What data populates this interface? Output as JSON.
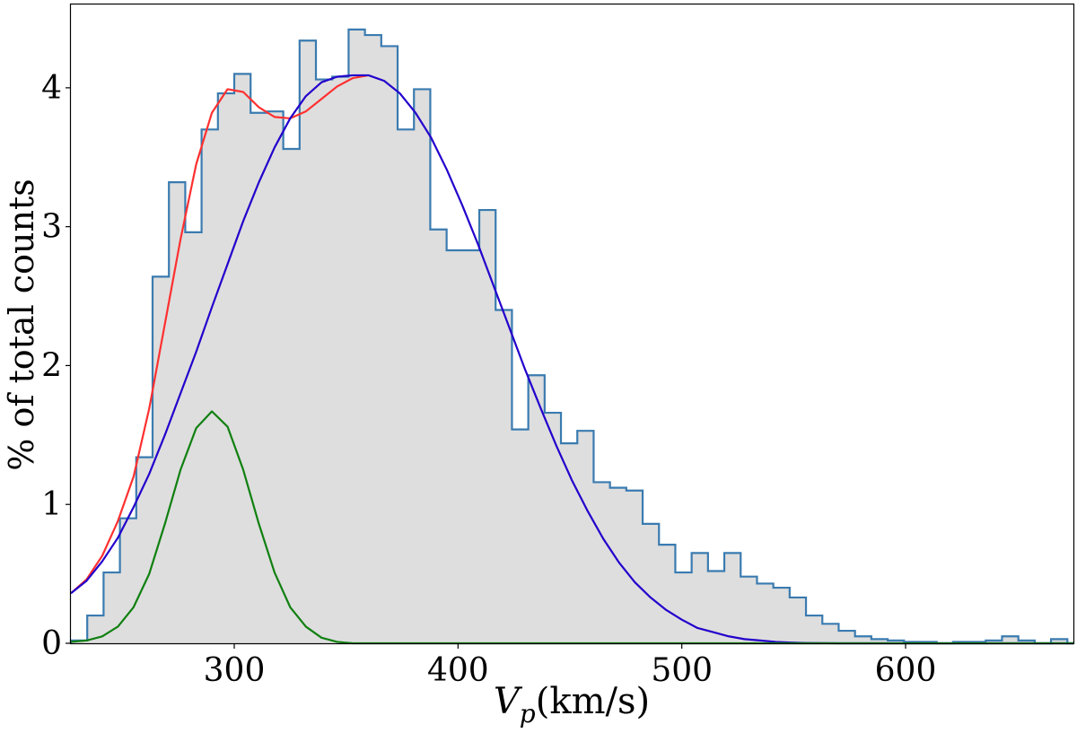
{
  "chart_data": {
    "type": "histogram",
    "xlabel_main": "V",
    "xlabel_sub": "p",
    "xlabel_unit": "(km/s)",
    "ylabel": "% of total counts",
    "xlim": [
      227,
      675
    ],
    "ylim": [
      0,
      4.6
    ],
    "xticks": [
      300,
      400,
      500,
      600
    ],
    "yticks": [
      0,
      1,
      2,
      3,
      4
    ],
    "histogram": {
      "bin_start": 227,
      "bin_width": 7.3,
      "values": [
        0.02,
        0.2,
        0.51,
        0.9,
        1.34,
        2.64,
        3.32,
        2.96,
        3.7,
        3.96,
        4.1,
        3.82,
        3.83,
        3.56,
        4.34,
        4.06,
        4.08,
        4.42,
        4.38,
        4.3,
        3.7,
        3.99,
        2.98,
        2.83,
        2.83,
        3.12,
        2.4,
        1.54,
        1.93,
        1.66,
        1.44,
        1.53,
        1.16,
        1.12,
        1.1,
        0.86,
        0.71,
        0.51,
        0.65,
        0.52,
        0.65,
        0.48,
        0.43,
        0.4,
        0.33,
        0.2,
        0.14,
        0.09,
        0.05,
        0.03,
        0.02,
        0.01,
        0.01,
        0.0,
        0.01,
        0.01,
        0.02,
        0.05,
        0.02,
        0.0,
        0.03,
        0.0,
        0.02,
        0.0,
        0.02,
        0.0,
        0.02,
        0.02,
        0.02,
        0.02
      ]
    },
    "series": [
      {
        "color": "#ff3030",
        "points": [
          [
            227,
            0.36
          ],
          [
            234,
            0.46
          ],
          [
            241,
            0.63
          ],
          [
            248,
            0.88
          ],
          [
            255,
            1.2
          ],
          [
            262,
            1.69
          ],
          [
            269,
            2.3
          ],
          [
            276,
            2.91
          ],
          [
            283,
            3.45
          ],
          [
            290,
            3.82
          ],
          [
            297,
            3.99
          ],
          [
            304,
            3.97
          ],
          [
            311,
            3.86
          ],
          [
            318,
            3.79
          ],
          [
            325,
            3.78
          ],
          [
            332,
            3.83
          ],
          [
            339,
            3.92
          ],
          [
            346,
            4.01
          ],
          [
            353,
            4.07
          ],
          [
            360,
            4.09
          ]
        ]
      },
      {
        "color": "#2200cc",
        "points": [
          [
            227,
            0.36
          ],
          [
            234,
            0.45
          ],
          [
            241,
            0.59
          ],
          [
            248,
            0.76
          ],
          [
            255,
            0.98
          ],
          [
            262,
            1.22
          ],
          [
            269,
            1.5
          ],
          [
            276,
            1.8
          ],
          [
            283,
            2.1
          ],
          [
            290,
            2.42
          ],
          [
            297,
            2.73
          ],
          [
            304,
            3.04
          ],
          [
            311,
            3.32
          ],
          [
            318,
            3.57
          ],
          [
            325,
            3.78
          ],
          [
            332,
            3.94
          ],
          [
            339,
            4.04
          ],
          [
            346,
            4.08
          ],
          [
            353,
            4.09
          ],
          [
            360,
            4.09
          ],
          [
            367,
            4.05
          ],
          [
            374,
            3.96
          ],
          [
            381,
            3.82
          ],
          [
            388,
            3.64
          ],
          [
            395,
            3.41
          ],
          [
            402,
            3.15
          ],
          [
            409,
            2.87
          ],
          [
            416,
            2.57
          ],
          [
            423,
            2.27
          ],
          [
            430,
            1.97
          ],
          [
            437,
            1.69
          ],
          [
            444,
            1.42
          ],
          [
            451,
            1.17
          ],
          [
            458,
            0.95
          ],
          [
            465,
            0.75
          ],
          [
            472,
            0.58
          ],
          [
            479,
            0.44
          ],
          [
            486,
            0.33
          ],
          [
            493,
            0.24
          ],
          [
            500,
            0.17
          ],
          [
            507,
            0.11
          ],
          [
            514,
            0.08
          ],
          [
            521,
            0.05
          ],
          [
            528,
            0.03
          ],
          [
            535,
            0.02
          ],
          [
            542,
            0.01
          ],
          [
            549,
            0.005
          ],
          [
            556,
            0.002
          ],
          [
            570,
            0.0
          ],
          [
            675,
            0.0
          ]
        ]
      },
      {
        "color": "#108010",
        "points": [
          [
            227,
            0.01
          ],
          [
            234,
            0.02
          ],
          [
            241,
            0.05
          ],
          [
            248,
            0.12
          ],
          [
            255,
            0.26
          ],
          [
            262,
            0.5
          ],
          [
            269,
            0.86
          ],
          [
            276,
            1.25
          ],
          [
            283,
            1.55
          ],
          [
            290,
            1.67
          ],
          [
            297,
            1.56
          ],
          [
            304,
            1.25
          ],
          [
            311,
            0.86
          ],
          [
            318,
            0.51
          ],
          [
            325,
            0.26
          ],
          [
            332,
            0.12
          ],
          [
            339,
            0.04
          ],
          [
            346,
            0.01
          ],
          [
            353,
            0.0
          ],
          [
            675,
            0.0
          ]
        ]
      }
    ],
    "grid": false,
    "histogram_fill": "#dedede",
    "histogram_edge": "#3a7bb0"
  }
}
